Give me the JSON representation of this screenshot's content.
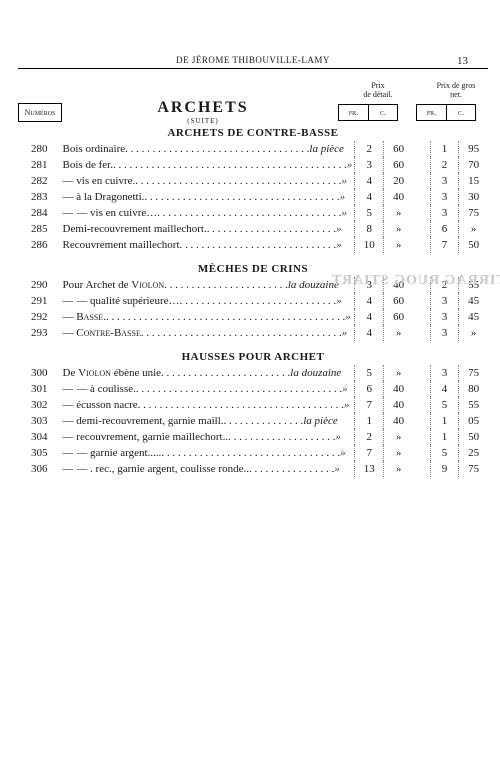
{
  "page": {
    "running_head": "DE JÉROME THIBOUVILLE-LAMY",
    "page_number": "13",
    "price_head_detail": "Prix\nde détail.",
    "price_head_net": "Prix de gros\nnet.",
    "numeros": "Numéros",
    "title": "ARCHETS",
    "subtitle": "(SUITE)",
    "col_fr": "fr.",
    "col_c": "c."
  },
  "sections": [
    {
      "title": "ARCHETS DE CONTRE-BASSE",
      "rows": [
        {
          "num": "280",
          "desc": "Bois ordinaire",
          "unit": "la pièce",
          "d_fr": "2",
          "d_c": "60",
          "n_fr": "1",
          "n_c": "95"
        },
        {
          "num": "281",
          "desc": "Bois de fer.",
          "unit": "»",
          "d_fr": "3",
          "d_c": "60",
          "n_fr": "2",
          "n_c": "70"
        },
        {
          "num": "282",
          "desc": "—        vis en cuivre.",
          "unit": "»",
          "d_fr": "4",
          "d_c": "20",
          "n_fr": "3",
          "n_c": "15"
        },
        {
          "num": "283",
          "desc": "—      à la Dragonetti.",
          "unit": "»",
          "d_fr": "4",
          "d_c": "40",
          "n_fr": "3",
          "n_c": "30"
        },
        {
          "num": "284",
          "desc": "—            —            vis en cuivre…",
          "unit": "»",
          "d_fr": "5",
          "d_c": "»",
          "n_fr": "3",
          "n_c": "75"
        },
        {
          "num": "285",
          "desc": "Demi-recouvrement maillechort.",
          "unit": "»",
          "d_fr": "8",
          "d_c": "»",
          "n_fr": "6",
          "n_c": "»"
        },
        {
          "num": "286",
          "desc": "Recouvrement maillechort",
          "unit": "»",
          "d_fr": "10",
          "d_c": "»",
          "n_fr": "7",
          "n_c": "50"
        }
      ]
    },
    {
      "title": "MÈCHES DE CRINS",
      "ghost": "RUTIRRAG RUOG STIART",
      "rows": [
        {
          "num": "290",
          "desc": "Pour Archet de <span class='sc'>Violon</span>",
          "unit": "la douzaine",
          "d_fr": "3",
          "d_c": "40",
          "n_fr": "2",
          "n_c": "55"
        },
        {
          "num": "291",
          "desc": "—        —      qualité supérieure…",
          "unit": "»",
          "d_fr": "4",
          "d_c": "60",
          "n_fr": "3",
          "n_c": "45"
        },
        {
          "num": "292",
          "desc": "—        <span class='sc'>Basse</span>.",
          "unit": "»",
          "d_fr": "4",
          "d_c": "60",
          "n_fr": "3",
          "n_c": "45"
        },
        {
          "num": "293",
          "desc": "—        <span class='sc'>Contre-Basse</span>",
          "unit": "»",
          "d_fr": "4",
          "d_c": "»",
          "n_fr": "3",
          "n_c": "»"
        }
      ]
    },
    {
      "title": "HAUSSES POUR ARCHET",
      "rows": [
        {
          "num": "300",
          "desc": "De <span class='sc'>Violon</span> ébène unie",
          "unit": "la douzaine",
          "d_fr": "5",
          "d_c": "»",
          "n_fr": "3",
          "n_c": "75"
        },
        {
          "num": "301",
          "desc": "—       —     à coulisse.",
          "unit": "»",
          "d_fr": "6",
          "d_c": "40",
          "n_fr": "4",
          "n_c": "80"
        },
        {
          "num": "302",
          "desc": "—       écusson nacre",
          "unit": "»",
          "d_fr": "7",
          "d_c": "40",
          "n_fr": "5",
          "n_c": "55"
        },
        {
          "num": "303",
          "desc": "—       demi-recouvrement, garnie maill.",
          "unit": "la pièce",
          "d_fr": "1",
          "d_c": "40",
          "n_fr": "1",
          "n_c": "05"
        },
        {
          "num": "304",
          "desc": "—       recouvrement, garnie maillechort..",
          "unit": "»",
          "d_fr": "2",
          "d_c": "»",
          "n_fr": "1",
          "n_c": "50"
        },
        {
          "num": "305",
          "desc": "—       —        garnie argent.....",
          "unit": "»",
          "d_fr": "7",
          "d_c": "»",
          "n_fr": "5",
          "n_c": "25"
        },
        {
          "num": "306",
          "desc": "—   —  . rec., garnie argent, coulisse ronde..",
          "unit": "»",
          "d_fr": "13",
          "d_c": "»",
          "n_fr": "9",
          "n_c": "75"
        }
      ]
    }
  ],
  "style": {
    "text_color": "#1a1a1a",
    "bg": "#ffffff",
    "ghost_color": "#c8c8c8",
    "rule_color": "#000000",
    "price_vline": "#888888",
    "font_body": 11,
    "font_title": 16
  }
}
